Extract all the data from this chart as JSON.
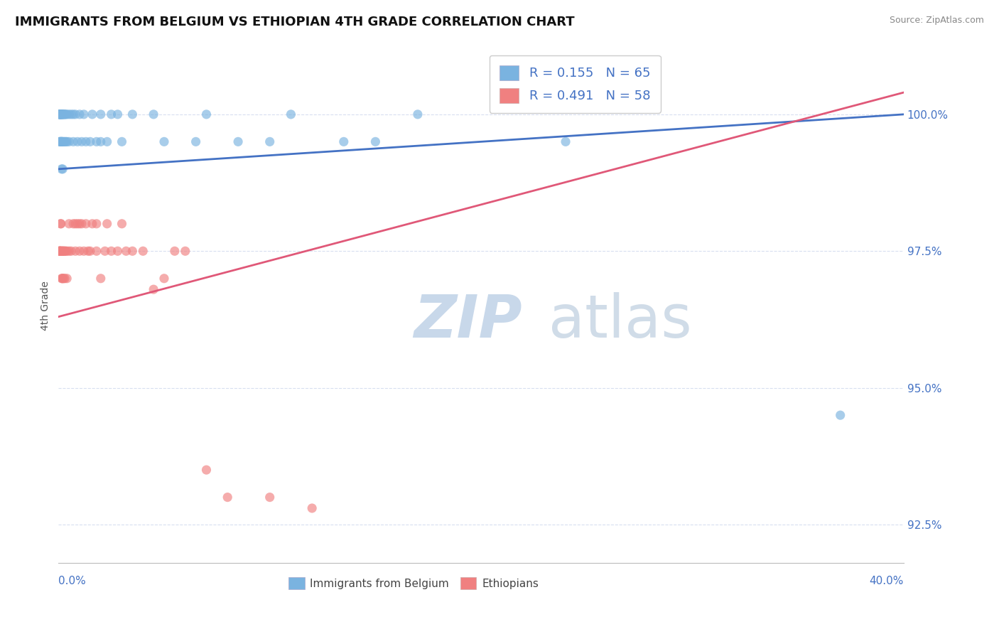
{
  "title": "IMMIGRANTS FROM BELGIUM VS ETHIOPIAN 4TH GRADE CORRELATION CHART",
  "source": "Source: ZipAtlas.com",
  "ylabel": "4th Grade",
  "xlim": [
    0.0,
    40.0
  ],
  "ylim": [
    91.8,
    101.2
  ],
  "yticks": [
    92.5,
    95.0,
    97.5,
    100.0
  ],
  "ytick_labels": [
    "92.5%",
    "95.0%",
    "97.5%",
    "100.0%"
  ],
  "R_belgium": 0.155,
  "N_belgium": 65,
  "R_ethiopian": 0.491,
  "N_ethiopian": 58,
  "belgium_color": "#7ab3e0",
  "ethiopian_color": "#f08080",
  "trendline_belgium_color": "#4472c4",
  "trendline_ethiopian_color": "#e05878",
  "background_color": "#ffffff",
  "grid_color": "#d8dff0",
  "trendline_belgium_x0": 0.0,
  "trendline_belgium_y0": 99.0,
  "trendline_belgium_x1": 40.0,
  "trendline_belgium_y1": 100.0,
  "trendline_ethiopian_x0": 0.0,
  "trendline_ethiopian_y0": 96.3,
  "trendline_ethiopian_x1": 40.0,
  "trendline_ethiopian_y1": 100.4,
  "belgium_x": [
    0.05,
    0.05,
    0.05,
    0.05,
    0.05,
    0.08,
    0.08,
    0.1,
    0.1,
    0.1,
    0.12,
    0.12,
    0.15,
    0.15,
    0.15,
    0.15,
    0.15,
    0.18,
    0.18,
    0.2,
    0.2,
    0.2,
    0.2,
    0.25,
    0.25,
    0.28,
    0.3,
    0.3,
    0.35,
    0.35,
    0.4,
    0.4,
    0.5,
    0.5,
    0.6,
    0.7,
    0.7,
    0.8,
    0.9,
    1.0,
    1.1,
    1.2,
    1.3,
    1.5,
    1.6,
    1.8,
    2.0,
    2.0,
    2.3,
    2.5,
    2.8,
    3.0,
    3.5,
    4.5,
    5.0,
    6.5,
    7.0,
    8.5,
    10.0,
    11.0,
    13.5,
    15.0,
    17.0,
    24.0,
    37.0
  ],
  "belgium_y": [
    99.5,
    100.0,
    100.0,
    100.0,
    100.0,
    99.5,
    100.0,
    99.5,
    100.0,
    100.0,
    99.5,
    100.0,
    99.0,
    99.5,
    99.5,
    100.0,
    100.0,
    99.5,
    100.0,
    99.0,
    99.5,
    100.0,
    100.0,
    99.5,
    100.0,
    100.0,
    99.5,
    100.0,
    99.5,
    100.0,
    99.5,
    100.0,
    99.5,
    100.0,
    100.0,
    99.5,
    100.0,
    100.0,
    99.5,
    100.0,
    99.5,
    100.0,
    99.5,
    99.5,
    100.0,
    99.5,
    99.5,
    100.0,
    99.5,
    100.0,
    100.0,
    99.5,
    100.0,
    100.0,
    99.5,
    99.5,
    100.0,
    99.5,
    99.5,
    100.0,
    99.5,
    99.5,
    100.0,
    99.5,
    94.5
  ],
  "ethiopian_x": [
    0.05,
    0.05,
    0.05,
    0.08,
    0.08,
    0.1,
    0.1,
    0.12,
    0.12,
    0.15,
    0.15,
    0.18,
    0.18,
    0.2,
    0.2,
    0.2,
    0.25,
    0.25,
    0.28,
    0.3,
    0.3,
    0.35,
    0.4,
    0.4,
    0.5,
    0.5,
    0.6,
    0.7,
    0.8,
    0.8,
    0.9,
    1.0,
    1.0,
    1.1,
    1.2,
    1.3,
    1.4,
    1.5,
    1.6,
    1.8,
    1.8,
    2.0,
    2.2,
    2.3,
    2.5,
    2.8,
    3.0,
    3.2,
    3.5,
    4.0,
    4.5,
    5.0,
    5.5,
    6.0,
    7.0,
    8.0,
    10.0,
    12.0
  ],
  "ethiopian_y": [
    97.5,
    97.5,
    97.5,
    97.5,
    97.5,
    97.5,
    98.0,
    97.5,
    98.0,
    97.0,
    97.5,
    97.0,
    97.5,
    97.0,
    97.5,
    97.5,
    97.0,
    97.5,
    97.5,
    97.0,
    97.5,
    97.5,
    97.0,
    97.5,
    97.5,
    98.0,
    97.5,
    98.0,
    97.5,
    98.0,
    98.0,
    97.5,
    98.0,
    98.0,
    97.5,
    98.0,
    97.5,
    97.5,
    98.0,
    98.0,
    97.5,
    97.0,
    97.5,
    98.0,
    97.5,
    97.5,
    98.0,
    97.5,
    97.5,
    97.5,
    96.8,
    97.0,
    97.5,
    97.5,
    93.5,
    93.0,
    93.0,
    92.8
  ]
}
